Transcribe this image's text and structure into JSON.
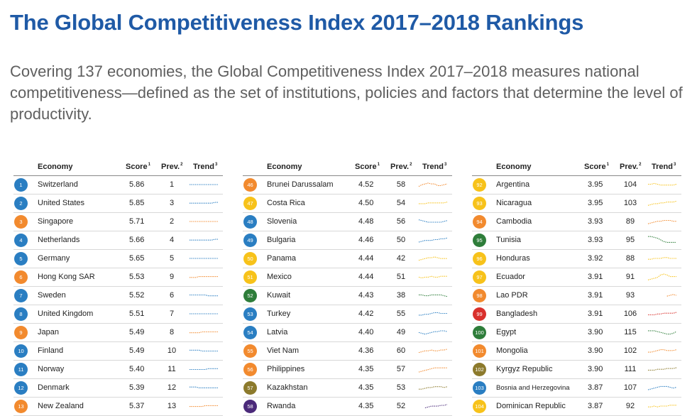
{
  "title": "The Global Competitiveness Index 2017–2018 Rankings",
  "subtitle": "Covering 137 economies, the Global Competitiveness Index 2017–2018 measures national competitiveness—defined as the set of institutions, policies and factors that determine the level of productivity.",
  "headers": {
    "economy": "Economy",
    "score": "Score",
    "score_note": "1",
    "prev": "Prev.",
    "prev_note": "2",
    "trend": "Trend",
    "trend_note": "3"
  },
  "colors": {
    "blue": "#2a7ec2",
    "orange": "#f28a2e",
    "yellow": "#f7c21a",
    "green": "#2e7d3a",
    "olive": "#8c7a2c",
    "red": "#d9302c",
    "purple": "#4b2a7a"
  },
  "columns": [
    {
      "rows": [
        {
          "rank": "1",
          "economy": "Switzerland",
          "score": "5.86",
          "prev": "1",
          "color": "blue",
          "trend": [
            5.5,
            5.5,
            5.5,
            5.5,
            5.5,
            5.5,
            5.5,
            5.5,
            5.5,
            5.5
          ]
        },
        {
          "rank": "2",
          "economy": "United States",
          "score": "5.85",
          "prev": "3",
          "color": "blue",
          "trend": [
            5.4,
            5.4,
            5.4,
            5.4,
            5.4,
            5.4,
            5.4,
            5.4,
            5.5,
            5.5
          ]
        },
        {
          "rank": "3",
          "economy": "Singapore",
          "score": "5.71",
          "prev": "2",
          "color": "orange",
          "trend": [
            5.5,
            5.5,
            5.5,
            5.5,
            5.5,
            5.5,
            5.5,
            5.5,
            5.5,
            5.5
          ]
        },
        {
          "rank": "4",
          "economy": "Netherlands",
          "score": "5.66",
          "prev": "4",
          "color": "blue",
          "trend": [
            5.4,
            5.4,
            5.4,
            5.4,
            5.4,
            5.4,
            5.4,
            5.4,
            5.5,
            5.5
          ]
        },
        {
          "rank": "5",
          "economy": "Germany",
          "score": "5.65",
          "prev": "5",
          "color": "blue",
          "trend": [
            5.5,
            5.5,
            5.5,
            5.5,
            5.5,
            5.5,
            5.5,
            5.5,
            5.5,
            5.5
          ]
        },
        {
          "rank": "6",
          "economy": "Hong Kong SAR",
          "score": "5.53",
          "prev": "9",
          "color": "orange",
          "trend": [
            5.3,
            5.3,
            5.3,
            5.4,
            5.4,
            5.4,
            5.4,
            5.4,
            5.4,
            5.4
          ]
        },
        {
          "rank": "7",
          "economy": "Sweden",
          "score": "5.52",
          "prev": "6",
          "color": "blue",
          "trend": [
            5.5,
            5.5,
            5.5,
            5.5,
            5.5,
            5.5,
            5.4,
            5.4,
            5.4,
            5.4
          ]
        },
        {
          "rank": "8",
          "economy": "United Kingdom",
          "score": "5.51",
          "prev": "7",
          "color": "blue",
          "trend": [
            5.4,
            5.4,
            5.4,
            5.4,
            5.4,
            5.4,
            5.4,
            5.4,
            5.4,
            5.4
          ]
        },
        {
          "rank": "9",
          "economy": "Japan",
          "score": "5.49",
          "prev": "8",
          "color": "orange",
          "trend": [
            5.3,
            5.3,
            5.3,
            5.3,
            5.4,
            5.4,
            5.4,
            5.4,
            5.4,
            5.4
          ]
        },
        {
          "rank": "10",
          "economy": "Finland",
          "score": "5.49",
          "prev": "10",
          "color": "blue",
          "trend": [
            5.5,
            5.5,
            5.5,
            5.5,
            5.4,
            5.4,
            5.4,
            5.4,
            5.4,
            5.4
          ]
        },
        {
          "rank": "11",
          "economy": "Norway",
          "score": "5.40",
          "prev": "11",
          "color": "blue",
          "trend": [
            5.3,
            5.3,
            5.3,
            5.3,
            5.3,
            5.3,
            5.4,
            5.4,
            5.4,
            5.4
          ]
        },
        {
          "rank": "12",
          "economy": "Denmark",
          "score": "5.39",
          "prev": "12",
          "color": "blue",
          "trend": [
            5.4,
            5.4,
            5.4,
            5.3,
            5.3,
            5.3,
            5.3,
            5.3,
            5.3,
            5.3
          ]
        },
        {
          "rank": "13",
          "economy": "New Zealand",
          "score": "5.37",
          "prev": "13",
          "color": "orange",
          "trend": [
            5.2,
            5.2,
            5.2,
            5.2,
            5.2,
            5.3,
            5.3,
            5.3,
            5.3,
            5.3
          ]
        }
      ]
    },
    {
      "rows": [
        {
          "rank": "46",
          "economy": "Brunei Darussalam",
          "score": "4.52",
          "prev": "58",
          "color": "orange",
          "trend": [
            4.2,
            4.4,
            4.5,
            4.6,
            4.5,
            4.5,
            4.3,
            4.3,
            4.4,
            4.5
          ]
        },
        {
          "rank": "47",
          "economy": "Costa Rica",
          "score": "4.50",
          "prev": "54",
          "color": "yellow",
          "trend": [
            4.3,
            4.3,
            4.3,
            4.4,
            4.4,
            4.4,
            4.4,
            4.4,
            4.4,
            4.5
          ]
        },
        {
          "rank": "48",
          "economy": "Slovenia",
          "score": "4.48",
          "prev": "56",
          "color": "blue",
          "trend": [
            4.6,
            4.5,
            4.4,
            4.3,
            4.3,
            4.3,
            4.3,
            4.3,
            4.4,
            4.5
          ]
        },
        {
          "rank": "49",
          "economy": "Bulgaria",
          "score": "4.46",
          "prev": "50",
          "color": "blue",
          "trend": [
            4.0,
            4.1,
            4.2,
            4.2,
            4.2,
            4.3,
            4.3,
            4.4,
            4.4,
            4.5
          ]
        },
        {
          "rank": "50",
          "economy": "Panama",
          "score": "4.44",
          "prev": "42",
          "color": "yellow",
          "trend": [
            4.2,
            4.3,
            4.4,
            4.5,
            4.5,
            4.6,
            4.5,
            4.4,
            4.4,
            4.4
          ]
        },
        {
          "rank": "51",
          "economy": "Mexico",
          "score": "4.44",
          "prev": "51",
          "color": "yellow",
          "trend": [
            4.3,
            4.2,
            4.3,
            4.3,
            4.4,
            4.3,
            4.3,
            4.4,
            4.4,
            4.4
          ]
        },
        {
          "rank": "52",
          "economy": "Kuwait",
          "score": "4.43",
          "prev": "38",
          "color": "green",
          "trend": [
            4.6,
            4.6,
            4.5,
            4.5,
            4.6,
            4.6,
            4.6,
            4.6,
            4.5,
            4.4
          ]
        },
        {
          "rank": "53",
          "economy": "Turkey",
          "score": "4.42",
          "prev": "55",
          "color": "blue",
          "trend": [
            4.2,
            4.2,
            4.3,
            4.3,
            4.4,
            4.5,
            4.5,
            4.4,
            4.4,
            4.4
          ]
        },
        {
          "rank": "54",
          "economy": "Latvia",
          "score": "4.40",
          "prev": "49",
          "color": "blue",
          "trend": [
            4.3,
            4.2,
            4.1,
            4.2,
            4.3,
            4.4,
            4.4,
            4.5,
            4.5,
            4.4
          ]
        },
        {
          "rank": "55",
          "economy": "Viet Nam",
          "score": "4.36",
          "prev": "60",
          "color": "orange",
          "trend": [
            4.0,
            4.1,
            4.2,
            4.2,
            4.3,
            4.2,
            4.2,
            4.3,
            4.3,
            4.4
          ]
        },
        {
          "rank": "56",
          "economy": "Philippines",
          "score": "4.35",
          "prev": "57",
          "color": "orange",
          "trend": [
            3.9,
            4.0,
            4.1,
            4.2,
            4.3,
            4.4,
            4.4,
            4.4,
            4.4,
            4.4
          ]
        },
        {
          "rank": "57",
          "economy": "Kazakhstan",
          "score": "4.35",
          "prev": "53",
          "color": "olive",
          "trend": [
            4.1,
            4.1,
            4.2,
            4.3,
            4.3,
            4.4,
            4.4,
            4.4,
            4.3,
            4.4
          ]
        },
        {
          "rank": "58",
          "economy": "Rwanda",
          "score": "4.35",
          "prev": "52",
          "color": "purple",
          "trend": [
            4.0,
            4.1,
            4.2,
            4.2,
            4.2,
            4.3,
            4.3,
            4.4
          ]
        }
      ]
    },
    {
      "rows": [
        {
          "rank": "92",
          "economy": "Argentina",
          "score": "3.95",
          "prev": "104",
          "color": "yellow",
          "trend": [
            3.9,
            3.9,
            4.0,
            3.9,
            3.8,
            3.8,
            3.8,
            3.8,
            3.8,
            3.9
          ]
        },
        {
          "rank": "93",
          "economy": "Nicaragua",
          "score": "3.95",
          "prev": "103",
          "color": "yellow",
          "trend": [
            3.5,
            3.6,
            3.7,
            3.7,
            3.8,
            3.8,
            3.9,
            3.9,
            3.9,
            4.0
          ]
        },
        {
          "rank": "94",
          "economy": "Cambodia",
          "score": "3.93",
          "prev": "89",
          "color": "orange",
          "trend": [
            3.6,
            3.7,
            3.8,
            3.9,
            3.9,
            4.0,
            4.0,
            4.0,
            3.9,
            3.9
          ]
        },
        {
          "rank": "95",
          "economy": "Tunisia",
          "score": "3.93",
          "prev": "95",
          "color": "green",
          "trend": [
            4.6,
            4.6,
            4.5,
            4.4,
            4.2,
            4.0,
            3.9,
            3.9,
            3.9,
            3.9
          ]
        },
        {
          "rank": "96",
          "economy": "Honduras",
          "score": "3.92",
          "prev": "88",
          "color": "yellow",
          "trend": [
            3.8,
            3.8,
            3.9,
            3.9,
            3.9,
            4.0,
            4.0,
            3.9,
            3.9,
            3.9
          ]
        },
        {
          "rank": "97",
          "economy": "Ecuador",
          "score": "3.91",
          "prev": "91",
          "color": "yellow",
          "trend": [
            3.5,
            3.6,
            3.7,
            3.8,
            4.1,
            4.2,
            4.1,
            3.9,
            3.9,
            3.9
          ]
        },
        {
          "rank": "98",
          "economy": "Lao PDR",
          "score": "3.91",
          "prev": "93",
          "color": "orange",
          "trend": [
            3.8,
            3.9,
            4.0,
            3.9
          ]
        },
        {
          "rank": "99",
          "economy": "Bangladesh",
          "score": "3.91",
          "prev": "106",
          "color": "red",
          "trend": [
            3.6,
            3.6,
            3.6,
            3.7,
            3.7,
            3.8,
            3.8,
            3.8,
            3.8,
            3.9
          ]
        },
        {
          "rank": "100",
          "economy": "Egypt",
          "score": "3.90",
          "prev": "115",
          "color": "green",
          "trend": [
            4.0,
            4.0,
            4.0,
            3.9,
            3.8,
            3.7,
            3.6,
            3.6,
            3.7,
            3.9
          ]
        },
        {
          "rank": "101",
          "economy": "Mongolia",
          "score": "3.90",
          "prev": "102",
          "color": "orange",
          "trend": [
            3.6,
            3.6,
            3.7,
            3.8,
            3.9,
            3.9,
            3.8,
            3.8,
            3.8,
            3.9
          ]
        },
        {
          "rank": "102",
          "economy": "Kyrgyz Republic",
          "score": "3.90",
          "prev": "111",
          "color": "olive",
          "trend": [
            3.6,
            3.6,
            3.6,
            3.7,
            3.7,
            3.7,
            3.8,
            3.8,
            3.8,
            3.9
          ]
        },
        {
          "rank": "103",
          "economy": "Bosnia and Herzegovina",
          "score": "3.87",
          "prev": "107",
          "color": "blue",
          "trend": [
            3.6,
            3.7,
            3.8,
            3.9,
            4.0,
            4.0,
            4.0,
            3.9,
            3.8,
            3.9
          ]
        },
        {
          "rank": "104",
          "economy": "Dominican Republic",
          "score": "3.87",
          "prev": "92",
          "color": "yellow",
          "trend": [
            3.7,
            3.7,
            3.8,
            3.7,
            3.8,
            3.8,
            3.8,
            3.9,
            3.9,
            3.9
          ]
        }
      ]
    }
  ]
}
